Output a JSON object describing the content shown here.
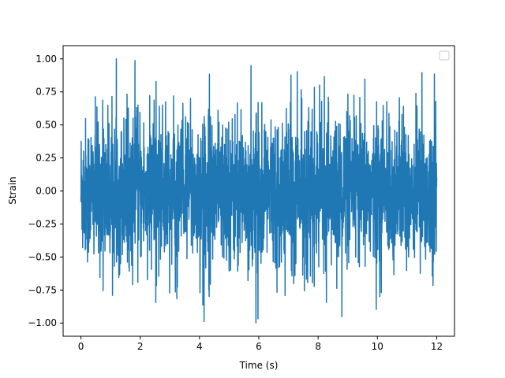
{
  "chart_data": {
    "type": "line",
    "title": "",
    "xlabel": "Time (s)",
    "ylabel": "Strain",
    "xlim": [
      -0.6,
      12.6
    ],
    "ylim": [
      -1.1,
      1.1
    ],
    "xticks": [
      0,
      2,
      4,
      6,
      8,
      10,
      12
    ],
    "xtick_labels": [
      "0",
      "2",
      "4",
      "6",
      "8",
      "10",
      "12"
    ],
    "yticks": [
      -1.0,
      -0.75,
      -0.5,
      -0.25,
      0.0,
      0.25,
      0.5,
      0.75,
      1.0
    ],
    "ytick_labels": [
      "−1.00",
      "−0.75",
      "−0.50",
      "−0.25",
      "0.00",
      "0.25",
      "0.50",
      "0.75",
      "1.00"
    ],
    "grid": false,
    "legend": {
      "placement": "top-right",
      "entries": []
    },
    "series": [
      {
        "color": "#1f77b4",
        "x_range": [
          0,
          12
        ],
        "y_min": -1.0,
        "y_max": 1.0,
        "typical_amplitude": 0.5
      }
    ]
  }
}
